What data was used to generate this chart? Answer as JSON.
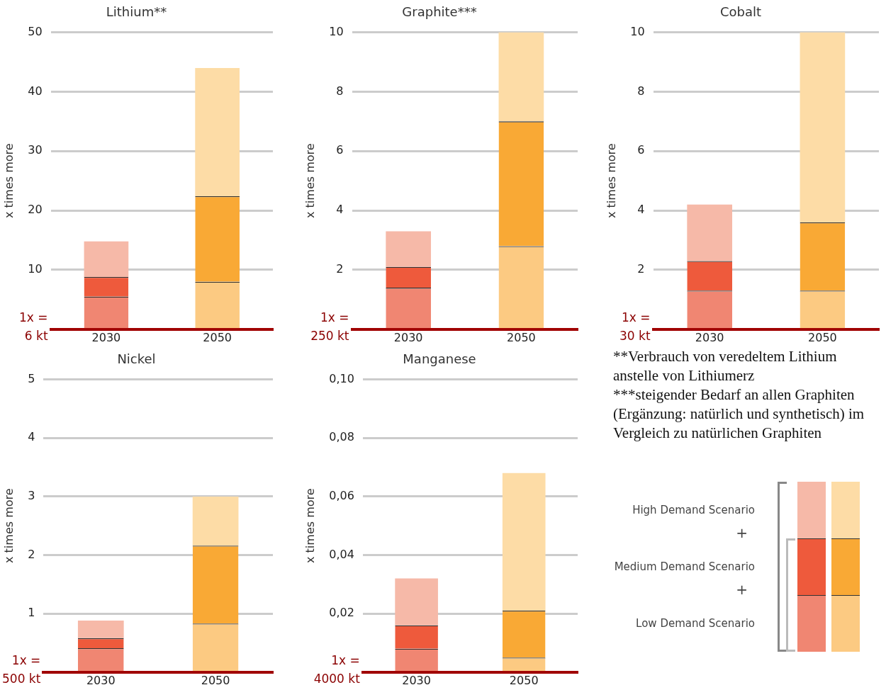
{
  "chart_data": [
    {
      "type": "bar",
      "title": "Lithium**",
      "ylabel": "x times more",
      "categories": [
        "2030",
        "2050"
      ],
      "stacked": true,
      "ylim": [
        0,
        50
      ],
      "yticks": [
        {
          "value": 0,
          "label": null
        },
        10,
        20,
        30,
        40,
        50
      ],
      "grid": "y",
      "annotations": [
        "1x = 6 kt"
      ],
      "series": [
        {
          "colors": [
            "#f08672",
            "#fcca82"
          ],
          "values": [
            5.5,
            8
          ]
        },
        {
          "colors": [
            "#ee5a3c",
            "#f9a935"
          ],
          "values": [
            3.3,
            14.4
          ]
        },
        {
          "colors": [
            "#f6b9a8",
            "#fddca6"
          ],
          "values": [
            6.0,
            21.6
          ]
        }
      ]
    },
    {
      "type": "bar",
      "title": "Graphite***",
      "ylabel": "x times more",
      "categories": [
        "2030",
        "2050"
      ],
      "stacked": true,
      "ylim": [
        0,
        10
      ],
      "yticks": [
        {
          "value": 0,
          "label": null
        },
        2,
        4,
        6,
        8,
        10
      ],
      "grid": "y",
      "annotations": [
        "1x = 250 kt"
      ],
      "series": [
        {
          "colors": [
            "#f08672",
            "#fcca82"
          ],
          "values": [
            1.4,
            2.8
          ]
        },
        {
          "colors": [
            "#ee5a3c",
            "#f9a935"
          ],
          "values": [
            0.7,
            4.2
          ]
        },
        {
          "colors": [
            "#f6b9a8",
            "#fddca6"
          ],
          "values": [
            1.2,
            3.0
          ]
        }
      ]
    },
    {
      "type": "bar",
      "title": "Cobalt",
      "ylabel": "x times more",
      "categories": [
        "2030",
        "2050"
      ],
      "stacked": true,
      "ylim": [
        0,
        10
      ],
      "yticks": [
        {
          "value": 0,
          "label": null
        },
        2,
        4,
        6,
        8,
        10
      ],
      "grid": "y",
      "annotations": [
        "1x = 30 kt",
        "**Verbrauch von veredeltem Lithium anstelle von Lithiumerz",
        "***steigender Bedarf an allen Graphiten (Ergänzung: natürlich und synthetisch) im Vergleich zu natürlichen Graphiten"
      ],
      "series": [
        {
          "colors": [
            "#f08672",
            "#fcca82"
          ],
          "values": [
            1.3,
            1.3
          ]
        },
        {
          "colors": [
            "#ee5a3c",
            "#f9a935"
          ],
          "values": [
            1.0,
            2.3
          ]
        },
        {
          "colors": [
            "#f6b9a8",
            "#fddca6"
          ],
          "values": [
            1.9,
            6.4
          ]
        }
      ]
    },
    {
      "type": "bar",
      "title": "Nickel",
      "ylabel": "x times more",
      "categories": [
        "2030",
        "2050"
      ],
      "stacked": true,
      "ylim": [
        0,
        5
      ],
      "yticks": [
        {
          "value": 0,
          "label": null
        },
        1,
        2,
        3,
        4,
        5
      ],
      "grid": "y",
      "annotations": [
        "1x = 500 kt"
      ],
      "series": [
        {
          "colors": [
            "#f08672",
            "#fcca82"
          ],
          "values": [
            0.41,
            0.83
          ]
        },
        {
          "colors": [
            "#ee5a3c",
            "#f9a935"
          ],
          "values": [
            0.17,
            1.33
          ]
        },
        {
          "colors": [
            "#f6b9a8",
            "#fddca6"
          ],
          "values": [
            0.3,
            0.84
          ]
        }
      ]
    },
    {
      "type": "bar",
      "title": "Manganese",
      "ylabel": "x times more",
      "categories": [
        "2030",
        "2050"
      ],
      "stacked": true,
      "ylim": [
        0,
        0.1
      ],
      "yticks": [
        {
          "value": 0,
          "label": null
        },
        {
          "value": 0.02,
          "label": "0,02"
        },
        {
          "value": 0.04,
          "label": "0,04"
        },
        {
          "value": 0.06,
          "label": "0,06"
        },
        {
          "value": 0.08,
          "label": "0,08"
        },
        {
          "value": 0.1,
          "label": "0,10"
        }
      ],
      "grid": "y",
      "legend": "right",
      "annotations": [
        "1x = 4000 kt",
        "+",
        "+"
      ],
      "series": [
        {
          "name": "Low Demand Scenario",
          "colors": [
            "#f08672",
            "#fcca82"
          ],
          "values": [
            0.008,
            0.005
          ]
        },
        {
          "name": "Medium Demand Scenario",
          "colors": [
            "#ee5a3c",
            "#f9a935"
          ],
          "values": [
            0.008,
            0.016
          ]
        },
        {
          "name": "High Demand Scenario",
          "colors": [
            "#f6b9a8",
            "#fddca6"
          ],
          "values": [
            0.016,
            0.047
          ]
        }
      ]
    }
  ]
}
